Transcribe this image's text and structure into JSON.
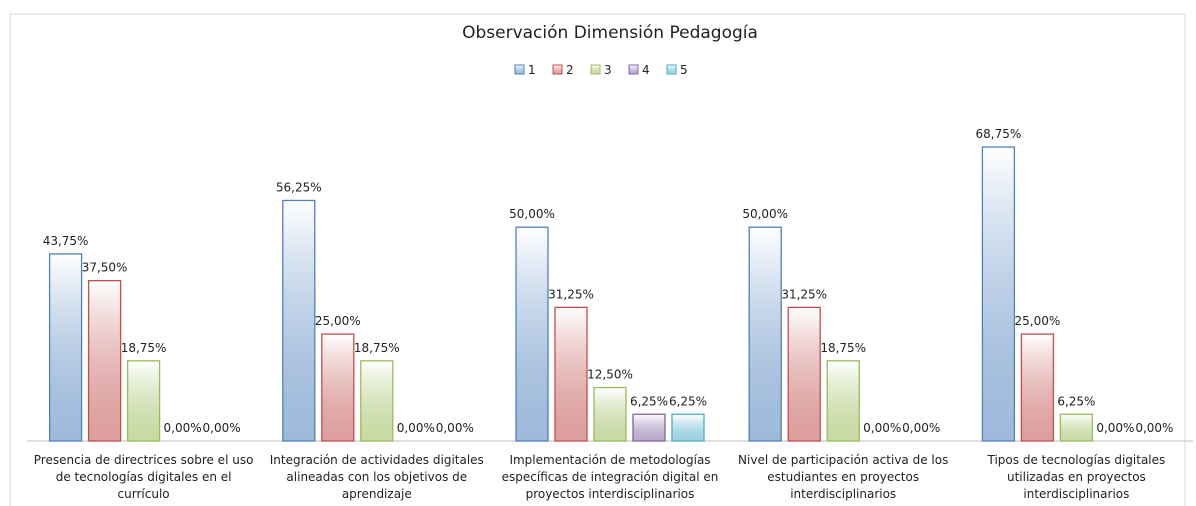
{
  "chart_data": {
    "type": "bar",
    "title": "Observación Dimensión Pedagogía",
    "categories": [
      "Presencia de directrices sobre el uso de tecnologías digitales en el currículo",
      "Integración de actividades digitales alineadas con los objetivos de aprendizaje",
      "Implementación de metodologías específicas de integración digital en proyectos interdisciplinarios",
      "Nivel de participación activa de los estudiantes en proyectos interdisciplinarios",
      "Tipos de tecnologías digitales utilizadas en proyectos interdisciplinarios"
    ],
    "series": [
      {
        "name": "1",
        "color": "#4f81bd",
        "values": [
          43.75,
          56.25,
          50,
          50,
          68.75
        ],
        "value_labels": [
          "43,75%",
          "56,25%",
          "50,00%",
          "50,00%",
          "68,75%"
        ]
      },
      {
        "name": "2",
        "color": "#c0504d",
        "values": [
          37.5,
          25,
          31.25,
          31.25,
          25
        ],
        "value_labels": [
          "37,50%",
          "25,00%",
          "31,25%",
          "31,25%",
          "25,00%"
        ]
      },
      {
        "name": "3",
        "color": "#9bbb59",
        "values": [
          18.75,
          18.75,
          12.5,
          18.75,
          6.25
        ],
        "value_labels": [
          "18,75%",
          "18,75%",
          "12,50%",
          "18,75%",
          "6,25%"
        ]
      },
      {
        "name": "4",
        "color": "#8064a2",
        "values": [
          0,
          0,
          6.25,
          0,
          0
        ],
        "value_labels": [
          "0,00%",
          "0,00%",
          "6,25%",
          "0,00%",
          "0,00%"
        ]
      },
      {
        "name": "5",
        "color": "#4bacc6",
        "values": [
          0,
          0,
          6.25,
          0,
          0
        ],
        "value_labels": [
          "0,00%",
          "0,00%",
          "6,25%",
          "0,00%",
          "0,00%"
        ]
      }
    ],
    "legend": "top"
  }
}
